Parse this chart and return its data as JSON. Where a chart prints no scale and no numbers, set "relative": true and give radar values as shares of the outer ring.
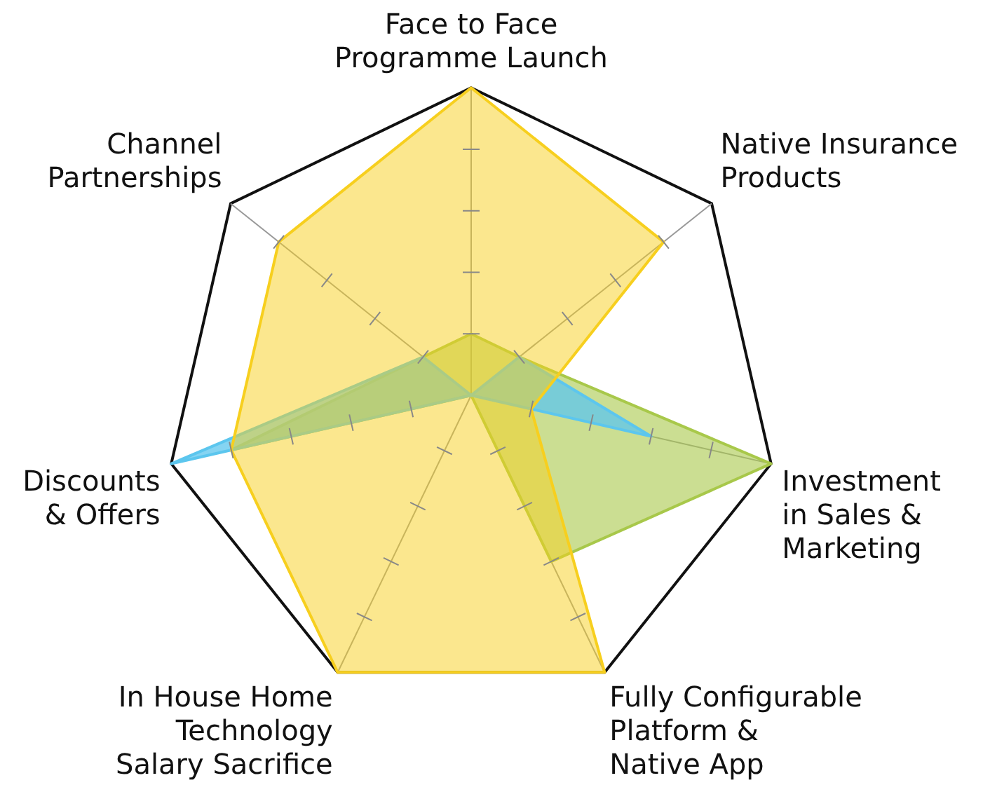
{
  "chart_data": {
    "type": "radar",
    "relative": true,
    "legend": false,
    "marker": "none",
    "categories": [
      "Face to Face\nProgramme Launch",
      "Native Insurance\nProducts",
      "Investment\nin Sales &\nMarketing",
      "Fully Configurable\nPlatform &\nNative App",
      "In House Home\nTechnology\nSalary Sacrifice",
      "Discounts\n& Offers",
      "Channel\nPartnerships"
    ],
    "series": [
      {
        "color": "#f7cf1e",
        "values": [
          1,
          0.8,
          0.2,
          1,
          1,
          0.8,
          0.8
        ]
      },
      {
        "color": "#5cc6ee",
        "values": [
          0,
          0.2,
          0.6,
          0,
          0,
          1,
          0.2
        ]
      },
      {
        "color": "#a8c84a",
        "values": [
          0.2,
          0.2,
          1,
          0.6,
          0,
          0.8,
          0.2
        ]
      }
    ]
  }
}
